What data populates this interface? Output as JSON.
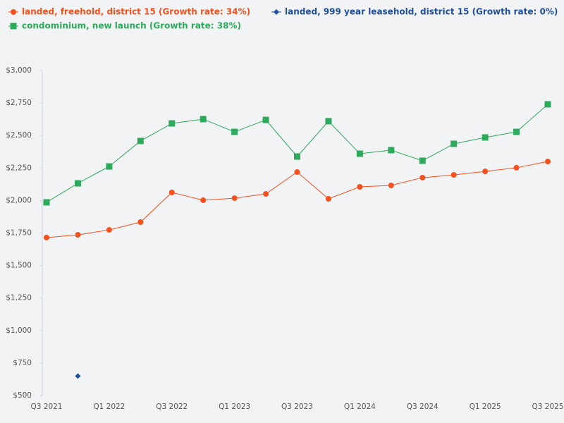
{
  "chart_data": {
    "type": "line",
    "categories": [
      "Q3 2021",
      null,
      "Q1 2022",
      null,
      "Q3 2022",
      null,
      "Q1 2023",
      null,
      "Q3 2023",
      null,
      "Q1 2024",
      null,
      "Q3 2024",
      null,
      "Q1 2025",
      null,
      "Q3 2025"
    ],
    "series": [
      {
        "name": "landed, freehold, district 15 (Growth rate: 34%)",
        "color": "#f4511e",
        "marker": "circle",
        "values": [
          1715,
          1736,
          1774,
          1834,
          2062,
          2002,
          2018,
          2051,
          2219,
          2013,
          2105,
          2116,
          2176,
          2197,
          2224,
          2252,
          2300
        ]
      },
      {
        "name": "landed, 999 year leasehold, district 15 (Growth rate: 0%)",
        "color": "#1f4e9c",
        "marker": "diamond",
        "values": [
          null,
          650,
          null,
          null,
          null,
          null,
          null,
          null,
          null,
          null,
          null,
          null,
          null,
          null,
          null,
          null,
          null
        ]
      },
      {
        "name": "condominium, new launch (Growth rate: 38%)",
        "color": "#2eaa5c",
        "marker": "square",
        "values": [
          1986,
          2132,
          2262,
          2458,
          2593,
          2626,
          2528,
          2620,
          2338,
          2610,
          2360,
          2387,
          2306,
          2436,
          2485,
          2528,
          2740
        ]
      }
    ],
    "ylim": [
      500,
      3000
    ],
    "yticks": [
      {
        "value": 500,
        "label": "$500"
      },
      {
        "value": 750,
        "label": "$750"
      },
      {
        "value": 1000,
        "label": "$1,000"
      },
      {
        "value": 1250,
        "label": "$1,250"
      },
      {
        "value": 1500,
        "label": "$1,500"
      },
      {
        "value": 1750,
        "label": "$1,750"
      },
      {
        "value": 2000,
        "label": "$2,000"
      },
      {
        "value": 2250,
        "label": "$2,250"
      },
      {
        "value": 2500,
        "label": "$2,500"
      },
      {
        "value": 2750,
        "label": "$2,750"
      },
      {
        "value": 3000,
        "label": "$3,000"
      }
    ],
    "grid": false,
    "legend": "top"
  }
}
